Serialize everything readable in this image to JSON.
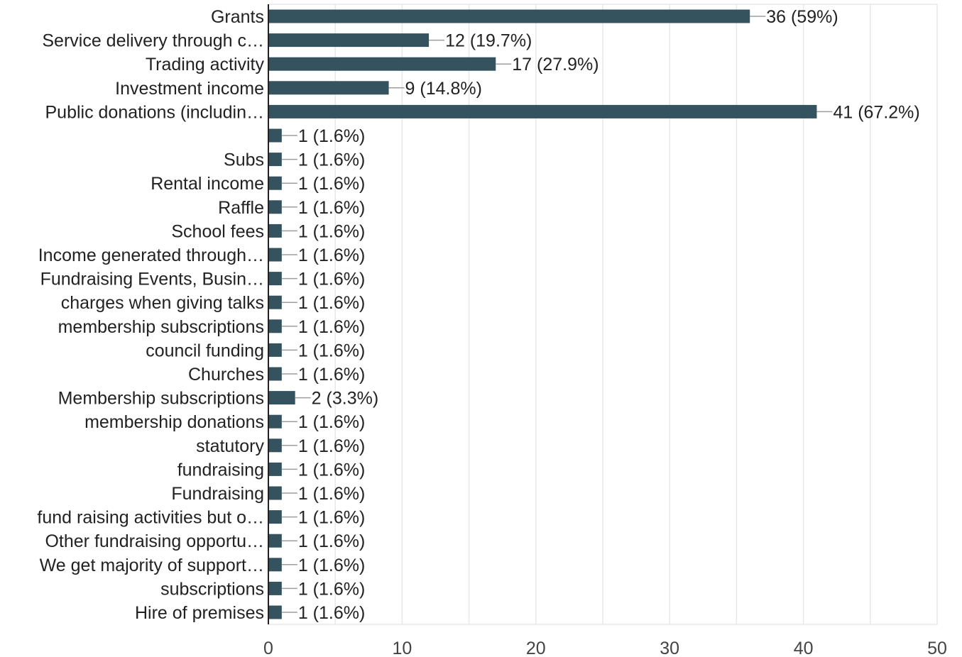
{
  "chart_data": {
    "type": "bar",
    "orientation": "horizontal",
    "title": "",
    "xlabel": "",
    "ylabel": "",
    "categories": [
      "Grants",
      "Service delivery through c…",
      "Trading activity",
      "Investment income",
      "Public donations (includin…",
      "",
      "Subs",
      "Rental income",
      "Raffle",
      "School fees",
      "Income generated through…",
      "Fundraising Events, Busin…",
      "charges when giving talks",
      "membership subscriptions",
      "council funding",
      "Churches",
      "Membership subscriptions",
      "membership donations",
      "statutory",
      "fundraising",
      "Fundraising",
      "fund raising activities but o…",
      "Other fundraising opportu…",
      "We get majority of support…",
      "subscriptions",
      "Hire of premises"
    ],
    "values": [
      36,
      12,
      17,
      9,
      41,
      1,
      1,
      1,
      1,
      1,
      1,
      1,
      1,
      1,
      1,
      1,
      2,
      1,
      1,
      1,
      1,
      1,
      1,
      1,
      1,
      1
    ],
    "value_labels": [
      "36 (59%)",
      "12 (19.7%)",
      "17 (27.9%)",
      "9 (14.8%)",
      "41 (67.2%)",
      "1 (1.6%)",
      "1 (1.6%)",
      "1 (1.6%)",
      "1 (1.6%)",
      "1 (1.6%)",
      "1 (1.6%)",
      "1 (1.6%)",
      "1 (1.6%)",
      "1 (1.6%)",
      "1 (1.6%)",
      "1 (1.6%)",
      "2 (3.3%)",
      "1 (1.6%)",
      "1 (1.6%)",
      "1 (1.6%)",
      "1 (1.6%)",
      "1 (1.6%)",
      "1 (1.6%)",
      "1 (1.6%)",
      "1 (1.6%)",
      "1 (1.6%)"
    ],
    "xlim": [
      0,
      50
    ],
    "xticks": [
      0,
      10,
      20,
      30,
      40,
      50
    ],
    "grid": true,
    "legend": "none",
    "colors": {
      "bar": "#34535e",
      "connector": "#9e9e9e",
      "grid": "#e8e8e8",
      "axis": "#222222"
    }
  }
}
